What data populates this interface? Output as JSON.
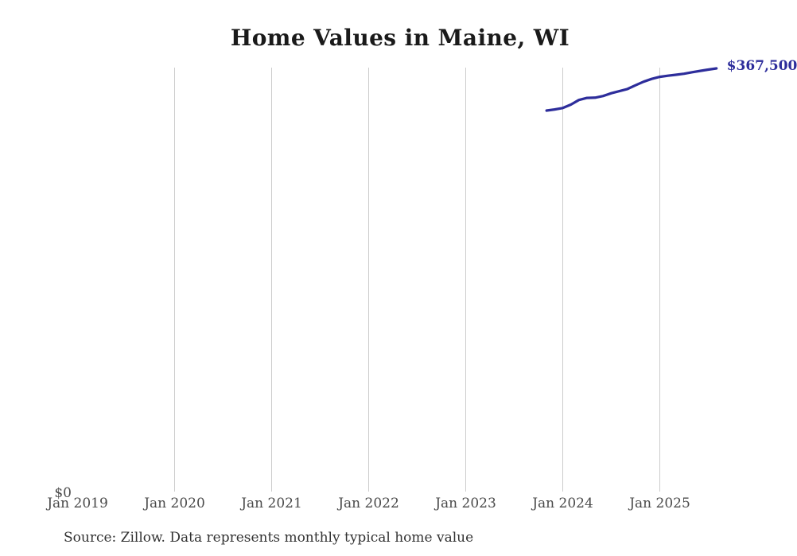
{
  "chart": {
    "title": "Home Values in Maine, WI",
    "latest_value_label": "$367,500",
    "y_zero_label": "$0",
    "source_note": "Source: Zillow. Data represents monthly typical home value",
    "colors": {
      "line": "#2d2d9b",
      "end_label": "#2d2d9b",
      "gridline": "#cccccc",
      "title": "#1a1a1a",
      "tick_label": "#4a4a4a",
      "source": "#333333"
    }
  },
  "chart_data": {
    "type": "line",
    "title": "Home Values in Maine, WI",
    "xlabel": "",
    "ylabel": "",
    "legend_position": "none",
    "grid": "vertical-only",
    "ylim": [
      0,
      380000
    ],
    "x_axis_span": [
      "Jan 2019",
      "Aug 2025"
    ],
    "x_ticks": [
      {
        "label": "Jan 2019",
        "gridline": false
      },
      {
        "label": "Jan 2020",
        "gridline": true
      },
      {
        "label": "Jan 2021",
        "gridline": true
      },
      {
        "label": "Jan 2022",
        "gridline": true
      },
      {
        "label": "Jan 2023",
        "gridline": true
      },
      {
        "label": "Jan 2024",
        "gridline": true
      },
      {
        "label": "Jan 2025",
        "gridline": true
      }
    ],
    "series": [
      {
        "name": "Monthly typical home value",
        "x": [
          "2023-11",
          "2023-12",
          "2024-01",
          "2024-02",
          "2024-03",
          "2024-04",
          "2024-05",
          "2024-06",
          "2024-07",
          "2024-08",
          "2024-09",
          "2024-10",
          "2024-11",
          "2024-12",
          "2025-01",
          "2025-02",
          "2025-03",
          "2025-04",
          "2025-05",
          "2025-06",
          "2025-07",
          "2025-08"
        ],
        "values": [
          331000,
          332000,
          333200,
          336200,
          340200,
          342000,
          342200,
          343600,
          346000,
          347800,
          349700,
          352900,
          356000,
          358400,
          360200,
          361200,
          362000,
          362900,
          364200,
          365400,
          366500,
          367500
        ]
      }
    ],
    "end_annotation": {
      "text": "$367,500",
      "value": 367500,
      "at_x": "2025-08"
    }
  }
}
